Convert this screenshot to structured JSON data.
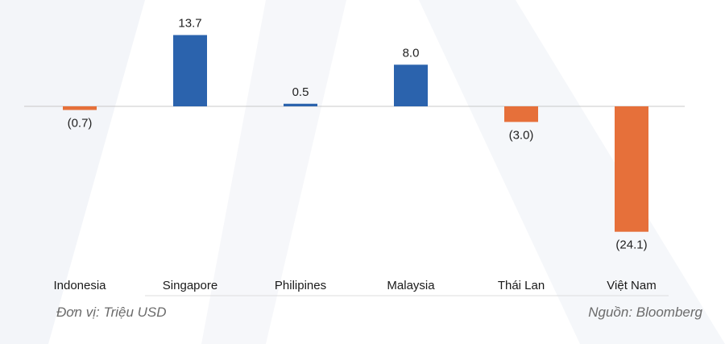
{
  "chart_data": {
    "type": "bar",
    "categories": [
      "Indonesia",
      "Singapore",
      "Philipines",
      "Malaysia",
      "Thái Lan",
      "Việt Nam"
    ],
    "values": [
      -0.7,
      13.7,
      0.5,
      8.0,
      -3.0,
      -24.1
    ],
    "value_labels": [
      "(0.7)",
      "13.7",
      "0.5",
      "8.0",
      "(3.0)",
      "(24.1)"
    ],
    "colors": {
      "positive": "#2b63ad",
      "negative": "#e6703a"
    },
    "ylim": [
      -24.1,
      13.7
    ],
    "grid": false,
    "legend": "none"
  },
  "footer": {
    "unit": "Đơn vị: Triệu USD",
    "source": "Nguồn: Bloomberg"
  }
}
